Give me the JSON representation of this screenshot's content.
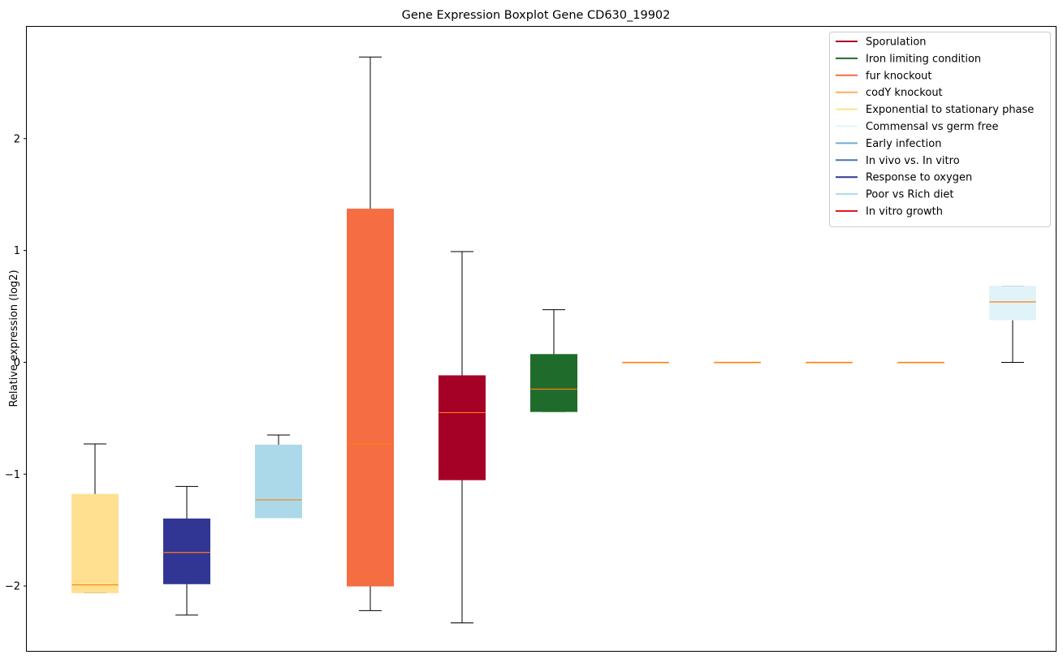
{
  "chart_data": {
    "type": "boxplot",
    "title": "Gene Expression Boxplot Gene CD630_19902",
    "xlabel": "",
    "ylabel": "Relative expression (log2)",
    "ylim": [
      -2.58,
      3.0
    ],
    "yticks": [
      -2,
      -1,
      0,
      1,
      2
    ],
    "ytick_labels": [
      "−2",
      "−1",
      "0",
      "1",
      "2"
    ],
    "grid": false,
    "legend_position": "upper-right",
    "median_color": "#ff7f0e",
    "legend": [
      {
        "label": "Sporulation",
        "color": "#a50026"
      },
      {
        "label": "Iron limiting condition",
        "color": "#1f6b2b"
      },
      {
        "label": "fur knockout",
        "color": "#f46d43"
      },
      {
        "label": "codY knockout",
        "color": "#fdae61"
      },
      {
        "label": "Exponential to stationary phase",
        "color": "#fee090"
      },
      {
        "label": "Commensal vs germ free",
        "color": "#e0f3f8"
      },
      {
        "label": "Early infection",
        "color": "#74add1"
      },
      {
        "label": "In vivo vs. In vitro",
        "color": "#4575b4"
      },
      {
        "label": "Response to oxygen",
        "color": "#313695"
      },
      {
        "label": "Poor vs Rich diet",
        "color": "#abd9e9"
      },
      {
        "label": "In vitro growth",
        "color": "#e31a1c"
      }
    ],
    "boxes": [
      {
        "color": "#fee090",
        "whislo": -2.06,
        "q1": -2.06,
        "med": -1.99,
        "q3": -1.18,
        "whishi": -0.73
      },
      {
        "color": "#313695",
        "whislo": -2.26,
        "q1": -1.98,
        "med": -1.7,
        "q3": -1.4,
        "whishi": -1.11
      },
      {
        "color": "#abd9e9",
        "whislo": -1.39,
        "q1": -1.39,
        "med": -1.23,
        "q3": -0.74,
        "whishi": -0.65
      },
      {
        "color": "#f46d43",
        "whislo": -2.22,
        "q1": -2.0,
        "med": -0.73,
        "q3": 1.37,
        "whishi": 2.73
      },
      {
        "color": "#a50026",
        "whislo": -2.33,
        "q1": -1.05,
        "med": -0.45,
        "q3": -0.12,
        "whishi": 0.99
      },
      {
        "color": "#1f6b2b",
        "whislo": -0.44,
        "q1": -0.44,
        "med": -0.24,
        "q3": 0.07,
        "whishi": 0.47
      },
      {
        "color": "#fdae61",
        "whislo": 0.0,
        "q1": 0.0,
        "med": 0.0,
        "q3": 0.0,
        "whishi": 0.0
      },
      {
        "color": "#fdae61",
        "whislo": 0.0,
        "q1": 0.0,
        "med": 0.0,
        "q3": 0.0,
        "whishi": 0.0
      },
      {
        "color": "#fdae61",
        "whislo": 0.0,
        "q1": 0.0,
        "med": 0.0,
        "q3": 0.0,
        "whishi": 0.0
      },
      {
        "color": "#fdae61",
        "whislo": 0.0,
        "q1": 0.0,
        "med": 0.0,
        "q3": 0.0,
        "whishi": 0.0
      },
      {
        "color": "#e0f3f8",
        "whislo": 0.0,
        "q1": 0.38,
        "med": 0.54,
        "q3": 0.68,
        "whishi": 0.68
      }
    ]
  }
}
